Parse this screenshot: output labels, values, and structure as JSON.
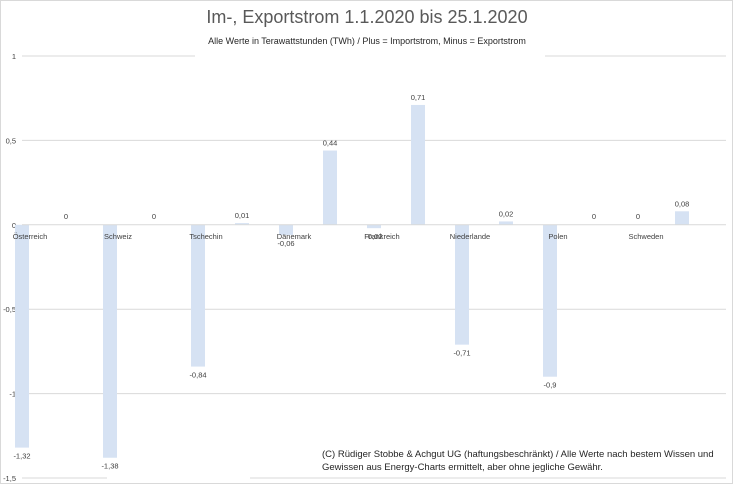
{
  "chart_data": {
    "type": "bar",
    "title": "Im-, Exportstrom 1.1.2020 bis 25.1.2020",
    "subtitle": "Alle Werte in Terawattstunden (TWh) / Plus = Importstrom, Minus = Exportstrom",
    "note": "(C) Rüdiger Stobbe & Achgut UG (haftungsbeschränkt) / Alle Werte nach bestem Wissen und Gewissen aus Energy-Charts ermittelt, aber ohne jegliche Gewähr.",
    "categories": [
      "Österreich",
      "Schweiz",
      "Tschechin",
      "Dänemark",
      "Frankreich",
      "Niederlande",
      "Polen",
      "Schweden"
    ],
    "series": [
      {
        "values": [
          -1.32,
          -1.38,
          -0.84,
          -0.06,
          -0.02,
          -0.71,
          -0.9,
          0
        ],
        "labels": [
          "-1,32",
          "-1,38",
          "-0,84",
          "-0,06",
          "-0,02",
          "-0,71",
          "-0,9",
          "0"
        ]
      },
      {
        "values": [
          0,
          0,
          0.01,
          0.44,
          0.71,
          0.02,
          0,
          0.08
        ],
        "labels": [
          "0",
          "0",
          "0,01",
          "0,44",
          "0,71",
          "0,02",
          "0",
          "0,08"
        ]
      }
    ],
    "yticks": [
      1,
      0.5,
      0,
      -0.5,
      -1,
      -1.5
    ],
    "ytick_labels": [
      "1",
      "0,5",
      "0",
      "-0,5",
      "-1",
      "-1,5"
    ],
    "ylim": [
      -1.5,
      1
    ],
    "colors": {
      "bar": "#d6e2f3",
      "grid": "#d9d9d9",
      "text": "#404040"
    }
  }
}
